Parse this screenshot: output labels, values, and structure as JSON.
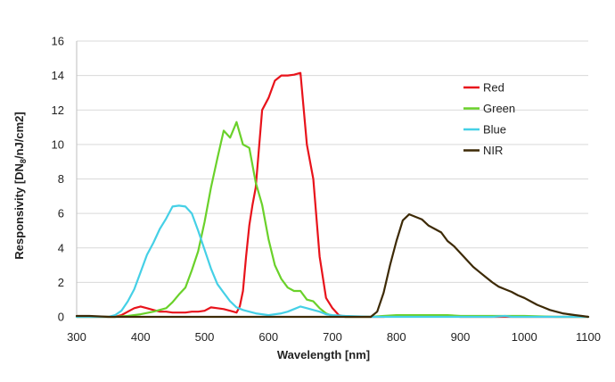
{
  "chart_data": {
    "type": "line",
    "title": "",
    "xlabel": "Wavelength [nm]",
    "ylabel": {
      "prefix": "Responsivity [DN",
      "sub": "8",
      "suffix": "/nJ/cm2]"
    },
    "xlim": [
      300,
      1100
    ],
    "ylim": [
      0,
      16
    ],
    "xticks": [
      300,
      400,
      500,
      600,
      700,
      800,
      900,
      1000,
      1100
    ],
    "yticks": [
      0,
      2,
      4,
      6,
      8,
      10,
      12,
      14,
      16
    ],
    "grid": "horizontal",
    "legend": "right",
    "series": [
      {
        "name": "Red",
        "color": "#e8131b",
        "x": [
          300,
          360,
          370,
          380,
          390,
          400,
          410,
          420,
          430,
          440,
          450,
          460,
          470,
          480,
          490,
          500,
          510,
          520,
          530,
          540,
          550,
          555,
          560,
          565,
          570,
          575,
          580,
          590,
          600,
          610,
          620,
          630,
          640,
          650,
          660,
          670,
          680,
          690,
          700,
          710,
          720,
          740,
          760,
          780,
          800,
          820,
          840,
          860,
          880,
          900,
          950,
          1000,
          1050,
          1100
        ],
        "values": [
          0,
          0,
          0.1,
          0.3,
          0.5,
          0.6,
          0.5,
          0.4,
          0.3,
          0.3,
          0.25,
          0.25,
          0.25,
          0.3,
          0.3,
          0.35,
          0.55,
          0.5,
          0.45,
          0.35,
          0.25,
          0.6,
          1.5,
          3.5,
          5.3,
          6.5,
          7.5,
          12.0,
          12.7,
          13.7,
          14.0,
          14.0,
          14.05,
          14.15,
          10.0,
          8.0,
          3.5,
          1.1,
          0.5,
          0.1,
          0,
          0,
          0,
          0,
          0.05,
          0.05,
          0.05,
          0.05,
          0.05,
          0,
          0,
          0,
          0,
          0
        ]
      },
      {
        "name": "Green",
        "color": "#6ad12a",
        "x": [
          300,
          360,
          380,
          400,
          420,
          440,
          450,
          460,
          470,
          480,
          490,
          500,
          510,
          520,
          530,
          540,
          550,
          560,
          570,
          580,
          590,
          600,
          610,
          620,
          630,
          640,
          650,
          660,
          670,
          680,
          690,
          700,
          720,
          760,
          780,
          800,
          820,
          840,
          860,
          880,
          900,
          950,
          1000,
          1050,
          1100
        ],
        "values": [
          0,
          0,
          0.05,
          0.15,
          0.3,
          0.5,
          0.85,
          1.3,
          1.7,
          2.7,
          3.8,
          5.5,
          7.5,
          9.2,
          10.8,
          10.4,
          11.3,
          10.0,
          9.8,
          7.8,
          6.5,
          4.5,
          3.0,
          2.2,
          1.7,
          1.5,
          1.5,
          1.0,
          0.9,
          0.5,
          0.2,
          0.05,
          0,
          0,
          0.05,
          0.1,
          0.1,
          0.1,
          0.1,
          0.1,
          0.05,
          0.05,
          0.05,
          0,
          0
        ]
      },
      {
        "name": "Blue",
        "color": "#45d0e6",
        "x": [
          300,
          350,
          360,
          370,
          380,
          390,
          400,
          410,
          420,
          430,
          440,
          450,
          460,
          470,
          480,
          490,
          500,
          510,
          520,
          530,
          540,
          550,
          560,
          570,
          580,
          590,
          600,
          610,
          620,
          630,
          640,
          650,
          660,
          670,
          680,
          690,
          700,
          720,
          760,
          800,
          850,
          900,
          950,
          970,
          980,
          1000,
          1050,
          1100
        ],
        "values": [
          0,
          0,
          0.1,
          0.35,
          0.9,
          1.6,
          2.6,
          3.6,
          4.3,
          5.1,
          5.7,
          6.4,
          6.45,
          6.4,
          6.0,
          5.0,
          3.9,
          2.8,
          1.9,
          1.4,
          0.9,
          0.55,
          0.4,
          0.3,
          0.2,
          0.15,
          0.1,
          0.15,
          0.2,
          0.3,
          0.45,
          0.6,
          0.5,
          0.4,
          0.3,
          0.15,
          0.1,
          0.05,
          0,
          0,
          0,
          0,
          0,
          0.05,
          0,
          0,
          0,
          0
        ]
      },
      {
        "name": "NIR",
        "color": "#3d2a06",
        "x": [
          300,
          320,
          350,
          400,
          500,
          600,
          700,
          740,
          760,
          770,
          780,
          790,
          800,
          810,
          820,
          830,
          840,
          850,
          860,
          870,
          880,
          890,
          900,
          910,
          920,
          930,
          940,
          950,
          960,
          970,
          980,
          990,
          1000,
          1010,
          1020,
          1030,
          1040,
          1050,
          1060,
          1070,
          1080,
          1090,
          1100
        ],
        "values": [
          0.05,
          0.05,
          0,
          0,
          0,
          0,
          0,
          0,
          0,
          0.3,
          1.4,
          3.0,
          4.4,
          5.6,
          5.95,
          5.8,
          5.65,
          5.3,
          5.1,
          4.9,
          4.4,
          4.1,
          3.7,
          3.3,
          2.9,
          2.6,
          2.3,
          2.0,
          1.75,
          1.6,
          1.45,
          1.25,
          1.1,
          0.9,
          0.7,
          0.55,
          0.4,
          0.3,
          0.2,
          0.15,
          0.1,
          0.05,
          0
        ]
      }
    ]
  }
}
